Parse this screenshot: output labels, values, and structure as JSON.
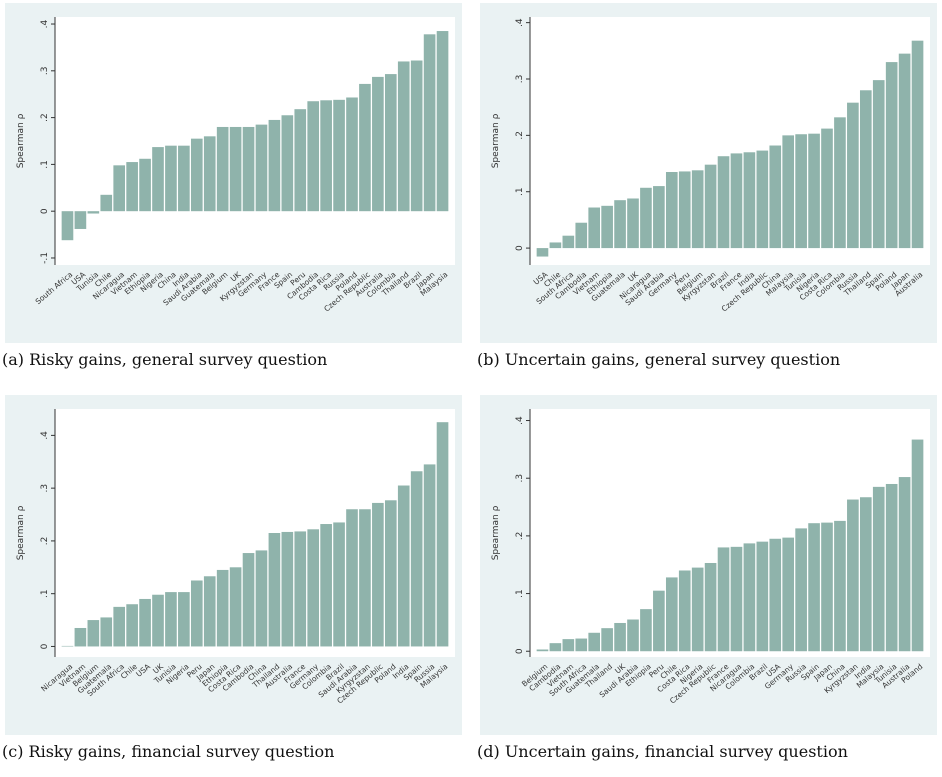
{
  "chart_data": [
    {
      "type": "bar",
      "caption": "(a) Risky gains, general survey question",
      "y_label": "Spearman ρ",
      "color": "#8fb3ab",
      "categories": [
        "South Africa",
        "USA",
        "Tunisia",
        "Chile",
        "Nicaragua",
        "Vietnam",
        "Ethiopia",
        "Nigeria",
        "China",
        "India",
        "Saudi Arabia",
        "Guatemala",
        "Belgium",
        "UK",
        "Kyrgyzstan",
        "Germany",
        "France",
        "Spain",
        "Peru",
        "Cambodia",
        "Costa Rica",
        "Russia",
        "Poland",
        "Czech Republic",
        "Australia",
        "Colombia",
        "Thailand",
        "Brazil",
        "Japan",
        "Malaysia"
      ],
      "values": [
        -0.062,
        -0.038,
        -0.005,
        0.035,
        0.098,
        0.105,
        0.112,
        0.137,
        0.14,
        0.14,
        0.155,
        0.16,
        0.18,
        0.18,
        0.18,
        0.185,
        0.195,
        0.205,
        0.218,
        0.235,
        0.237,
        0.238,
        0.243,
        0.272,
        0.287,
        0.293,
        0.32,
        0.322,
        0.378,
        0.385
      ],
      "ylim": [
        -0.115,
        0.415
      ],
      "yticks": [
        {
          "value": -0.1,
          "label": "-.1"
        },
        0,
        {
          "value": 0.1,
          "label": ".1"
        },
        {
          "value": 0.2,
          "label": ".2"
        },
        {
          "value": 0.3,
          "label": ".3"
        },
        {
          "value": 0.4,
          "label": ".4"
        }
      ]
    },
    {
      "type": "bar",
      "caption": "(b) Uncertain gains, general survey question",
      "y_label": "Spearman ρ",
      "color": "#8fb3ab",
      "categories": [
        "USA",
        "Chile",
        "South Africa",
        "Cambodia",
        "Vietnam",
        "Ethiopia",
        "Guatemala",
        "UK",
        "Nicaragua",
        "Saudi Arabia",
        "Germany",
        "Peru",
        "Belgium",
        "Kyrgyzstan",
        "Brazil",
        "France",
        "India",
        "Czech Republic",
        "China",
        "Malaysia",
        "Tunisia",
        "Nigeria",
        "Costa Rica",
        "Colombia",
        "Russia",
        "Thailand",
        "Spain",
        "Poland",
        "Japan",
        "Australia"
      ],
      "values": [
        -0.015,
        0.01,
        0.022,
        0.045,
        0.072,
        0.075,
        0.085,
        0.088,
        0.107,
        0.11,
        0.135,
        0.136,
        0.138,
        0.148,
        0.163,
        0.168,
        0.17,
        0.173,
        0.182,
        0.2,
        0.202,
        0.203,
        0.212,
        0.232,
        0.258,
        0.28,
        0.298,
        0.33,
        0.345,
        0.368
      ],
      "ylim": [
        -0.03,
        0.41
      ],
      "yticks": [
        0,
        {
          "value": 0.1,
          "label": ".1"
        },
        {
          "value": 0.2,
          "label": ".2"
        },
        {
          "value": 0.3,
          "label": ".3"
        },
        {
          "value": 0.4,
          "label": ".4"
        }
      ]
    },
    {
      "type": "bar",
      "caption": "(c) Risky gains, financial survey question",
      "y_label": "Spearman ρ",
      "color": "#8fb3ab",
      "categories": [
        "Nicaragua",
        "Vietnam",
        "Belgium",
        "Guatemala",
        "South Africa",
        "Chile",
        "USA",
        "UK",
        "Tunisia",
        "Nigeria",
        "Peru",
        "Japan",
        "Ethiopia",
        "Costa Rica",
        "Cambodia",
        "China",
        "Thailand",
        "Australia",
        "France",
        "Germany",
        "Colombia",
        "Brazil",
        "Saudi Arabia",
        "Kyrgyzstan",
        "Czech Republic",
        "Poland",
        "India",
        "Spain",
        "Russia",
        "Malaysia"
      ],
      "values": [
        0.001,
        0.035,
        0.05,
        0.055,
        0.075,
        0.08,
        0.09,
        0.098,
        0.103,
        0.103,
        0.125,
        0.133,
        0.145,
        0.15,
        0.177,
        0.182,
        0.215,
        0.217,
        0.218,
        0.222,
        0.232,
        0.235,
        0.26,
        0.26,
        0.272,
        0.277,
        0.305,
        0.332,
        0.345,
        0.425
      ],
      "ylim": [
        -0.02,
        0.45
      ],
      "yticks": [
        0,
        {
          "value": 0.1,
          "label": ".1"
        },
        {
          "value": 0.2,
          "label": ".2"
        },
        {
          "value": 0.3,
          "label": ".3"
        },
        {
          "value": 0.4,
          "label": ".4"
        }
      ]
    },
    {
      "type": "bar",
      "caption": "(d) Uncertain gains, financial survey question",
      "y_label": "Spearman ρ",
      "color": "#8fb3ab",
      "categories": [
        "Belgium",
        "Cambodia",
        "Vietnam",
        "South Africa",
        "Guatemala",
        "Thailand",
        "UK",
        "Saudi Arabia",
        "Ethiopia",
        "Peru",
        "Chile",
        "Costa Rica",
        "Nigeria",
        "Czech Republic",
        "France",
        "Nicaragua",
        "Colombia",
        "Brazil",
        "USA",
        "Germany",
        "Russia",
        "Spain",
        "Japan",
        "China",
        "Kyrgyzstan",
        "India",
        "Malaysia",
        "Tunisia",
        "Australia",
        "Poland"
      ],
      "values": [
        0.003,
        0.014,
        0.021,
        0.022,
        0.032,
        0.04,
        0.049,
        0.055,
        0.073,
        0.105,
        0.128,
        0.14,
        0.145,
        0.153,
        0.18,
        0.181,
        0.187,
        0.19,
        0.195,
        0.197,
        0.213,
        0.222,
        0.223,
        0.226,
        0.263,
        0.267,
        0.285,
        0.29,
        0.302,
        0.367
      ],
      "ylim": [
        -0.01,
        0.42
      ],
      "yticks": [
        0,
        {
          "value": 0.1,
          "label": ".1"
        },
        {
          "value": 0.2,
          "label": ".2"
        },
        {
          "value": 0.3,
          "label": ".3"
        },
        {
          "value": 0.4,
          "label": ".4"
        }
      ]
    }
  ]
}
